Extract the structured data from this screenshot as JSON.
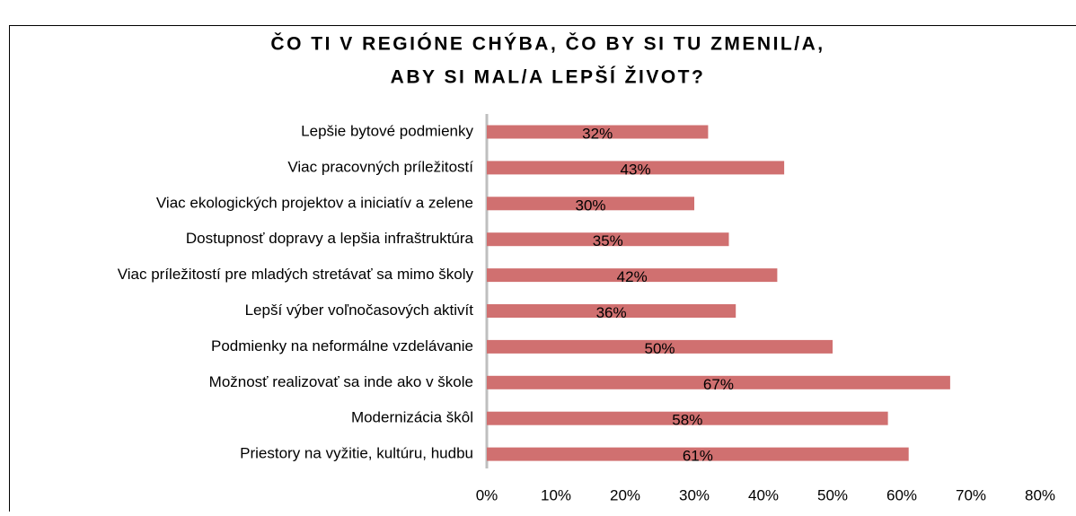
{
  "chart_data": {
    "type": "bar",
    "orientation": "horizontal",
    "title": [
      "ČO TI V REGIÓNE CHÝBA, ČO BY SI TU ZMENIL/A,",
      "ABY SI MAL/A LEPŠÍ ŽIVOT?"
    ],
    "categories": [
      "Lepšie bytové podmienky",
      "Viac pracovných príležitostí",
      "Viac ekologických projektov a iniciatív a zelene",
      "Dostupnosť dopravy a lepšia infraštruktúra",
      "Viac príležitostí pre mladých stretávať sa mimo školy",
      "Lepší výber voľnočasových aktivít",
      "Podmienky na neformálne vzdelávanie",
      "Možnosť realizovať sa inde ako v škole",
      "Modernizácia škôl",
      "Priestory na vyžitie, kultúru, hudbu"
    ],
    "values": [
      32,
      43,
      30,
      35,
      42,
      36,
      50,
      67,
      58,
      61
    ],
    "value_labels": [
      "32%",
      "43%",
      "30%",
      "35%",
      "42%",
      "36%",
      "50%",
      "67%",
      "58%",
      "61%"
    ],
    "color": "#d07070",
    "xlim": [
      0,
      80
    ],
    "xticks": [
      {
        "value": 0,
        "label": "0%"
      },
      {
        "value": 10,
        "label": "10%"
      },
      {
        "value": 20,
        "label": "20%"
      },
      {
        "value": 30,
        "label": "30%"
      },
      {
        "value": 40,
        "label": "40%"
      },
      {
        "value": 50,
        "label": "50%"
      },
      {
        "value": 60,
        "label": "60%"
      },
      {
        "value": 70,
        "label": "70%"
      },
      {
        "value": 80,
        "label": "80%"
      }
    ],
    "grid": false
  }
}
